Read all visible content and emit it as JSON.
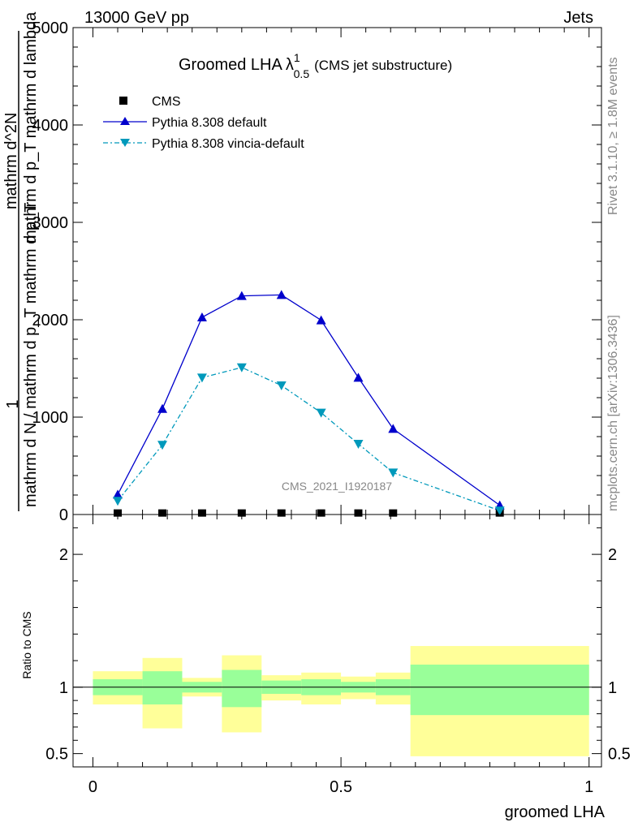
{
  "header": {
    "energy_label": "13000 GeV pp",
    "process_label": "Jets"
  },
  "side_labels": {
    "rivet": "Rivet 3.1.10, ≥ 1.8M events",
    "mcplots": "mcplots.cern.ch [arXiv:1306.3436]"
  },
  "chart_data": [
    {
      "type": "line",
      "title_main": "Groomed LHA",
      "title_symbol": "λ",
      "title_sup": "1",
      "title_sub": "0.5",
      "title_extra": "(CMS jet substructure)",
      "watermark": "CMS_2021_I1920187",
      "ylabel_parts": {
        "one": "1",
        "denominator": "mathrm d N / mathrm d p_T mathrm d p_T",
        "numerator": "mathrm d^2N",
        "numerator2": "mathrm d p_T mathrm d lambda"
      },
      "ylim": [
        0,
        5000
      ],
      "yticks": [
        0,
        1000,
        2000,
        3000,
        4000,
        5000
      ],
      "ytick_labels": [
        "0",
        "1000",
        "2000",
        "3000",
        "4000",
        "5000"
      ],
      "xlim": [
        -0.04,
        1.025
      ],
      "x": [
        0.05,
        0.14,
        0.22,
        0.3,
        0.38,
        0.46,
        0.535,
        0.605,
        0.82
      ],
      "series": [
        {
          "name": "CMS",
          "marker": "square",
          "color": "#000000",
          "values": [
            3,
            3,
            3,
            3,
            3,
            3,
            3,
            3,
            3
          ]
        },
        {
          "name": "Pythia 8.308 default",
          "marker": "triangle-up",
          "color": "#0000cc",
          "values": [
            205,
            1085,
            2025,
            2245,
            2255,
            1995,
            1405,
            880,
            95
          ]
        },
        {
          "name": "Pythia 8.308 vincia-default",
          "marker": "triangle-down",
          "color": "#0099bb",
          "values": [
            140,
            715,
            1405,
            1510,
            1325,
            1045,
            725,
            430,
            40
          ]
        }
      ],
      "legend_position": "top-left"
    },
    {
      "type": "area",
      "ylabel": "Ratio to CMS",
      "xlabel": "groomed LHA",
      "ylim": [
        0.4,
        2.3
      ],
      "yticks": [
        0.5,
        1,
        2
      ],
      "ytick_labels": [
        "0.5",
        "1",
        "2"
      ],
      "xticks": [
        0,
        0.5,
        1
      ],
      "xtick_labels": [
        "0",
        "0.5",
        "1"
      ],
      "xlim": [
        -0.04,
        1.025
      ],
      "bins": [
        {
          "lo": 0.0,
          "hi": 0.1,
          "stat": [
            0.94,
            1.06
          ],
          "total": [
            0.87,
            1.12
          ]
        },
        {
          "lo": 0.1,
          "hi": 0.18,
          "stat": [
            0.87,
            1.12
          ],
          "total": [
            0.69,
            1.22
          ]
        },
        {
          "lo": 0.18,
          "hi": 0.26,
          "stat": [
            0.96,
            1.04
          ],
          "total": [
            0.93,
            1.07
          ]
        },
        {
          "lo": 0.26,
          "hi": 0.34,
          "stat": [
            0.85,
            1.13
          ],
          "total": [
            0.66,
            1.24
          ]
        },
        {
          "lo": 0.34,
          "hi": 0.42,
          "stat": [
            0.95,
            1.05
          ],
          "total": [
            0.9,
            1.09
          ]
        },
        {
          "lo": 0.42,
          "hi": 0.5,
          "stat": [
            0.94,
            1.06
          ],
          "total": [
            0.87,
            1.11
          ]
        },
        {
          "lo": 0.5,
          "hi": 0.57,
          "stat": [
            0.96,
            1.04
          ],
          "total": [
            0.91,
            1.08
          ]
        },
        {
          "lo": 0.57,
          "hi": 0.64,
          "stat": [
            0.94,
            1.06
          ],
          "total": [
            0.87,
            1.11
          ]
        },
        {
          "lo": 0.64,
          "hi": 1.0,
          "stat": [
            0.79,
            1.17
          ],
          "total": [
            0.48,
            1.31
          ]
        }
      ],
      "reference": 1
    }
  ]
}
